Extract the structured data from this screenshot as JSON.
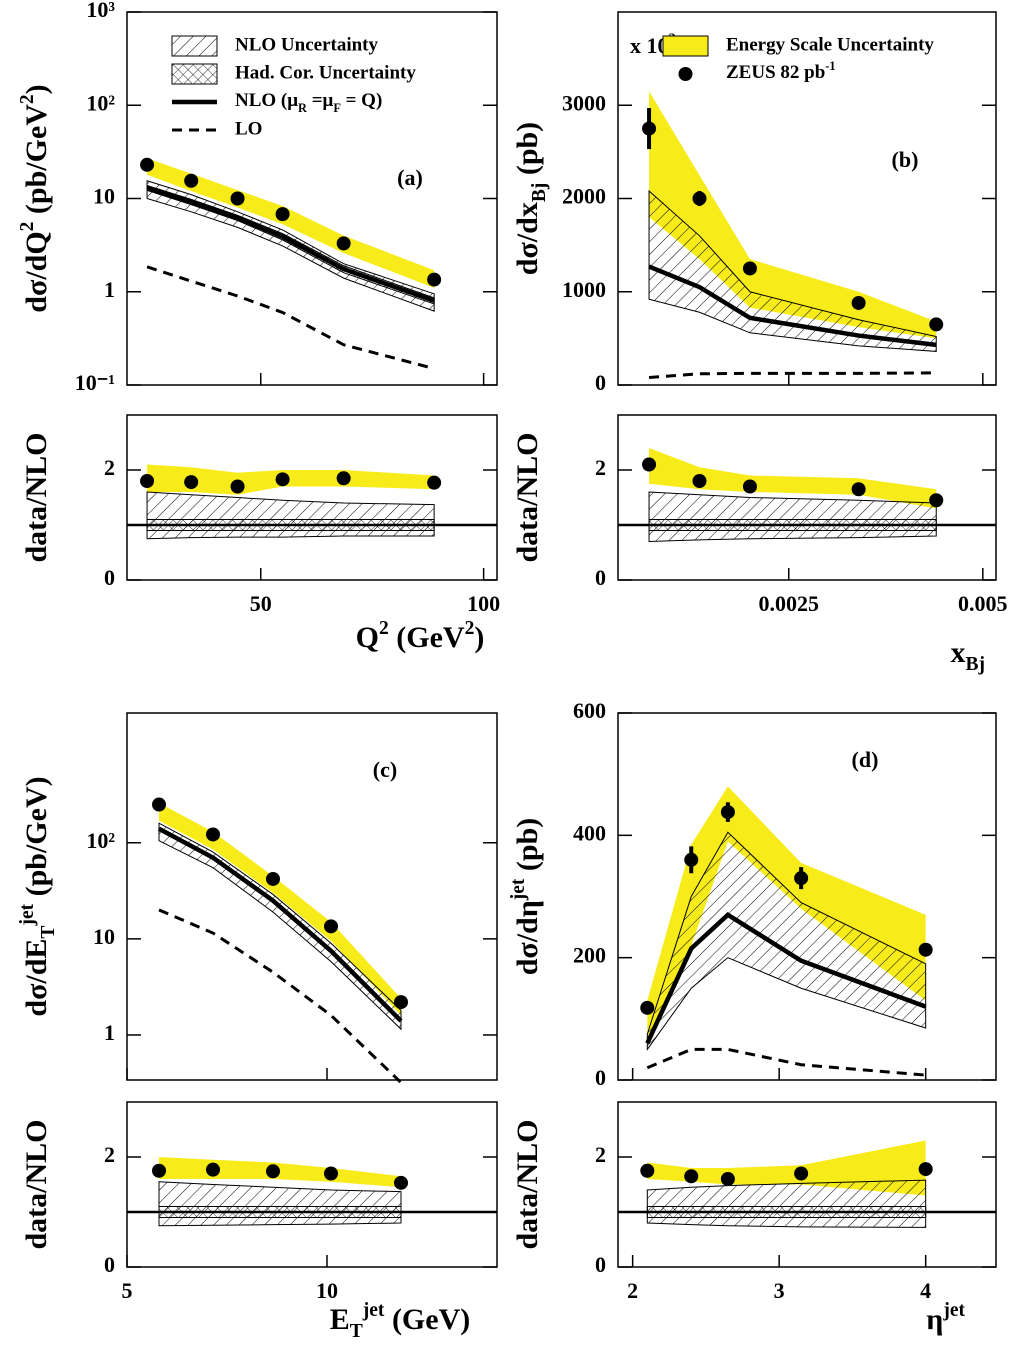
{
  "chart_data": [
    {
      "type": "line",
      "panel_label": "(a)",
      "log_y": true,
      "ylabel": [
        {
          "text": "dσ/dQ"
        },
        {
          "text": "2",
          "pos": "sup"
        },
        {
          "text": " (pb/GeV"
        },
        {
          "text": "2",
          "pos": "sup"
        },
        {
          "text": ")"
        }
      ],
      "xlim": [
        20,
        103
      ],
      "ylim": [
        0.1,
        1000
      ],
      "xticks": [
        50,
        100
      ],
      "xtick_labels": false,
      "yticks": [
        {
          "value": 0.1,
          "label": "10⁻¹"
        },
        1,
        10,
        {
          "value": 100,
          "label": "10²"
        },
        {
          "value": 1000,
          "label": "10³"
        }
      ],
      "x": [
        24.5,
        34.4,
        44.8,
        54.9,
        68.6,
        88.9
      ],
      "series": [
        {
          "kind": "band",
          "color": "#f7ec1a",
          "upper": [
            27,
            18.5,
            12.3,
            8.3,
            4.0,
            1.7
          ],
          "lower": [
            18,
            12,
            8,
            5.3,
            2.6,
            1.1
          ]
        },
        {
          "name": "NLO Uncertainty",
          "kind": "band",
          "pattern": "hatch",
          "color": "#000000",
          "upper": [
            15.5,
            11,
            7.2,
            4.6,
            2.0,
            0.95
          ],
          "lower": [
            10,
            7.2,
            4.9,
            3.1,
            1.4,
            0.62
          ]
        },
        {
          "name": "Had. Cor. Uncertainty",
          "kind": "band",
          "pattern": "crosshatch",
          "color": "#000000",
          "upper": [
            13.8,
            9.8,
            6.6,
            4.2,
            1.9,
            0.86
          ],
          "lower": [
            12.2,
            8.6,
            5.8,
            3.6,
            1.6,
            0.74
          ]
        },
        {
          "name": [
            {
              "text": "NLO  (μ"
            },
            {
              "text": "R",
              "pos": "sub"
            },
            {
              "text": " =μ"
            },
            {
              "text": "F",
              "pos": "sub"
            },
            {
              "text": " = Q)"
            }
          ],
          "kind": "line",
          "color": "#000000",
          "values": [
            13,
            9.2,
            6.2,
            3.9,
            1.75,
            0.8
          ]
        },
        {
          "name": "LO",
          "kind": "line",
          "dash": true,
          "color": "#000000",
          "values": [
            1.85,
            1.3,
            0.9,
            0.6,
            0.27,
            0.15
          ]
        },
        {
          "kind": "points",
          "color": "#000000",
          "values": [
            23,
            15.5,
            10,
            6.8,
            3.3,
            1.35
          ]
        }
      ]
    },
    {
      "type": "line",
      "ylabel": "data/NLO",
      "xlabel": [
        {
          "text": "Q"
        },
        {
          "text": "2",
          "pos": "sup"
        },
        {
          "text": " (GeV"
        },
        {
          "text": "2",
          "pos": "sup"
        },
        {
          "text": ")"
        }
      ],
      "xlim": [
        20,
        103
      ],
      "ylim": [
        0,
        3
      ],
      "xticks": [
        50,
        100
      ],
      "yticks": [
        0,
        2
      ],
      "hline": 1,
      "x": [
        24.5,
        34.4,
        44.8,
        54.9,
        68.6,
        88.9
      ],
      "series": [
        {
          "kind": "band",
          "color": "#f7ec1a",
          "upper": [
            2.1,
            2.05,
            1.95,
            2.0,
            2.0,
            1.9
          ],
          "lower": [
            1.6,
            1.6,
            1.55,
            1.7,
            1.7,
            1.65
          ]
        },
        {
          "kind": "band",
          "pattern": "hatch",
          "color": "#000000",
          "upper": [
            1.6,
            1.55,
            1.5,
            1.45,
            1.4,
            1.37
          ],
          "lower": [
            0.75,
            0.77,
            0.78,
            0.78,
            0.8,
            0.8
          ]
        },
        {
          "kind": "band",
          "pattern": "crosshatch",
          "color": "#000000",
          "upper": [
            1.1,
            1.1,
            1.1,
            1.1,
            1.1,
            1.1
          ],
          "lower": [
            0.9,
            0.9,
            0.9,
            0.9,
            0.9,
            0.9
          ]
        },
        {
          "kind": "points",
          "color": "#000000",
          "values": [
            1.8,
            1.78,
            1.7,
            1.83,
            1.85,
            1.77
          ]
        }
      ]
    },
    {
      "type": "line",
      "panel_label": "(b)",
      "ylabel": [
        {
          "text": "dσ/dx"
        },
        {
          "text": "Bj",
          "pos": "sub"
        },
        {
          "text": " (pb)"
        }
      ],
      "multiplier": [
        {
          "text": "x 10"
        },
        {
          "text": "2",
          "pos": "sup"
        }
      ],
      "xlim": [
        0.0003,
        0.00517
      ],
      "ylim": [
        0,
        4000
      ],
      "xticks": [
        0.0025,
        0.005
      ],
      "xtick_labels": false,
      "yticks": [
        0,
        1000,
        2000,
        3000
      ],
      "x": [
        0.0007,
        0.00135,
        0.002,
        0.0034,
        0.0044
      ],
      "series": [
        {
          "name": "Energy Scale Uncertainty",
          "kind": "band",
          "color": "#f7ec1a",
          "upper": [
            3150,
            2250,
            1350,
            1000,
            680
          ],
          "lower": [
            1800,
            1350,
            830,
            620,
            500
          ]
        },
        {
          "kind": "band",
          "pattern": "hatch",
          "color": "#000000",
          "upper": [
            2080,
            1600,
            1000,
            700,
            520
          ],
          "lower": [
            920,
            780,
            560,
            420,
            360
          ]
        },
        {
          "kind": "line",
          "color": "#000000",
          "values": [
            1270,
            1050,
            720,
            530,
            430
          ]
        },
        {
          "kind": "line",
          "dash": true,
          "color": "#000000",
          "values": [
            80,
            120,
            125,
            125,
            130
          ]
        },
        {
          "name": [
            {
              "text": "ZEUS 82 pb"
            },
            {
              "text": "-1",
              "pos": "sup"
            }
          ],
          "kind": "points",
          "color": "#000000",
          "values": [
            2750,
            2000,
            1250,
            880,
            650
          ],
          "errors": [
            220,
            80,
            30,
            30,
            20
          ]
        }
      ]
    },
    {
      "type": "line",
      "ylabel": "data/NLO",
      "xlabel": [
        {
          "text": "x"
        },
        {
          "text": "Bj",
          "pos": "sub"
        }
      ],
      "xlim": [
        0.0003,
        0.00517
      ],
      "ylim": [
        0,
        3
      ],
      "xticks": [
        0.0025,
        0.005
      ],
      "yticks": [
        0,
        2
      ],
      "hline": 1,
      "x": [
        0.0007,
        0.00135,
        0.002,
        0.0034,
        0.0044
      ],
      "series": [
        {
          "kind": "band",
          "color": "#f7ec1a",
          "upper": [
            2.4,
            2.05,
            1.9,
            1.85,
            1.65
          ],
          "lower": [
            1.75,
            1.65,
            1.6,
            1.55,
            1.3
          ]
        },
        {
          "kind": "band",
          "pattern": "hatch",
          "color": "#000000",
          "upper": [
            1.6,
            1.55,
            1.5,
            1.45,
            1.4
          ],
          "lower": [
            0.7,
            0.73,
            0.75,
            0.77,
            0.8
          ]
        },
        {
          "kind": "band",
          "pattern": "crosshatch",
          "color": "#000000",
          "upper": [
            1.1,
            1.1,
            1.1,
            1.1,
            1.1
          ],
          "lower": [
            0.9,
            0.9,
            0.9,
            0.9,
            0.9
          ]
        },
        {
          "kind": "points",
          "color": "#000000",
          "values": [
            2.1,
            1.8,
            1.7,
            1.65,
            1.45
          ],
          "errors": [
            0.12,
            0.05,
            0.03,
            0.03,
            0.03
          ]
        }
      ]
    },
    {
      "type": "line",
      "panel_label": "(c)",
      "log_y": true,
      "ylabel": [
        {
          "text": "dσ/dE"
        },
        {
          "text": "T",
          "pos": "sub"
        },
        {
          "text": "jet",
          "pos": "sup"
        },
        {
          "text": " (pb/GeV)"
        }
      ],
      "xlim": [
        5,
        14.25
      ],
      "ylim": [
        0.34,
        2240
      ],
      "xticks": [
        5,
        10
      ],
      "xtick_labels": false,
      "yticks": [
        1,
        10,
        {
          "value": 100,
          "label": "10²"
        }
      ],
      "x": [
        5.8,
        7.15,
        8.65,
        10.1,
        11.85
      ],
      "series": [
        {
          "kind": "band",
          "color": "#f7ec1a",
          "upper": [
            260,
            130,
            45,
            15,
            2.4
          ],
          "lower": [
            170,
            85,
            30,
            9.5,
            1.6
          ]
        },
        {
          "kind": "band",
          "pattern": "hatch",
          "color": "#000000",
          "upper": [
            160,
            80,
            29,
            9,
            1.8
          ],
          "lower": [
            105,
            55,
            19,
            5.8,
            1.15
          ]
        },
        {
          "kind": "line",
          "color": "#000000",
          "values": [
            140,
            70,
            25,
            7.5,
            1.4
          ]
        },
        {
          "kind": "line",
          "dash": true,
          "color": "#000000",
          "values": [
            20,
            11.5,
            4.5,
            1.6,
            0.32
          ]
        },
        {
          "kind": "points",
          "color": "#000000",
          "values": [
            250,
            122,
            42,
            13.5,
            2.2
          ]
        }
      ]
    },
    {
      "type": "line",
      "ylabel": "data/NLO",
      "xlabel": [
        {
          "text": "E"
        },
        {
          "text": "T",
          "pos": "sub"
        },
        {
          "text": "jet",
          "pos": "sup"
        },
        {
          "text": " (GeV)"
        }
      ],
      "xlim": [
        5,
        14.25
      ],
      "ylim": [
        0,
        3
      ],
      "xticks": [
        5,
        10
      ],
      "yticks": [
        0,
        2
      ],
      "hline": 1,
      "x": [
        5.8,
        7.15,
        8.65,
        10.1,
        11.85
      ],
      "series": [
        {
          "kind": "band",
          "color": "#f7ec1a",
          "upper": [
            2.0,
            1.95,
            1.9,
            1.8,
            1.65
          ],
          "lower": [
            1.6,
            1.6,
            1.6,
            1.55,
            1.45
          ]
        },
        {
          "kind": "band",
          "pattern": "hatch",
          "color": "#000000",
          "upper": [
            1.55,
            1.5,
            1.45,
            1.4,
            1.37
          ],
          "lower": [
            0.75,
            0.76,
            0.77,
            0.78,
            0.8
          ]
        },
        {
          "kind": "band",
          "pattern": "crosshatch",
          "color": "#000000",
          "upper": [
            1.1,
            1.1,
            1.1,
            1.1,
            1.1
          ],
          "lower": [
            0.9,
            0.9,
            0.9,
            0.9,
            0.9
          ]
        },
        {
          "kind": "points",
          "color": "#000000",
          "values": [
            1.75,
            1.77,
            1.74,
            1.7,
            1.53
          ],
          "errors": [
            0.03,
            0.03,
            0.03,
            0.08,
            0.1
          ]
        }
      ]
    },
    {
      "type": "line",
      "panel_label": "(d)",
      "ylabel": [
        {
          "text": "dσ/dη"
        },
        {
          "text": "jet",
          "pos": "sup"
        },
        {
          "text": " (pb)"
        }
      ],
      "xlim": [
        1.9,
        4.48
      ],
      "ylim": [
        0,
        600
      ],
      "xticks": [
        2,
        3,
        4
      ],
      "xtick_labels": false,
      "yticks": [
        0,
        200,
        400,
        600
      ],
      "x": [
        2.1,
        2.4,
        2.65,
        3.15,
        4.0
      ],
      "series": [
        {
          "kind": "band",
          "color": "#f7ec1a",
          "upper": [
            130,
            385,
            480,
            355,
            270
          ],
          "lower": [
            60,
            220,
            390,
            280,
            130
          ]
        },
        {
          "kind": "band",
          "pattern": "hatch",
          "color": "#000000",
          "upper": [
            75,
            300,
            405,
            290,
            190
          ],
          "lower": [
            50,
            150,
            200,
            150,
            85
          ]
        },
        {
          "kind": "line",
          "color": "#000000",
          "values": [
            60,
            215,
            270,
            195,
            120
          ]
        },
        {
          "kind": "line",
          "dash": true,
          "color": "#000000",
          "values": [
            20,
            50,
            50,
            25,
            8
          ]
        },
        {
          "kind": "points",
          "color": "#000000",
          "values": [
            118,
            360,
            438,
            330,
            213
          ],
          "errors": [
            5,
            22,
            16,
            18,
            6
          ]
        }
      ]
    },
    {
      "type": "line",
      "ylabel": "data/NLO",
      "xlabel": [
        {
          "text": "η"
        },
        {
          "text": "jet",
          "pos": "sup"
        }
      ],
      "xlim": [
        1.9,
        4.48
      ],
      "ylim": [
        0,
        3
      ],
      "xticks": [
        2,
        3,
        4
      ],
      "yticks": [
        0,
        2
      ],
      "hline": 1,
      "x": [
        2.1,
        2.4,
        2.65,
        3.15,
        4.0
      ],
      "series": [
        {
          "kind": "band",
          "color": "#f7ec1a",
          "upper": [
            1.9,
            1.8,
            1.8,
            1.85,
            2.3
          ],
          "lower": [
            1.6,
            1.55,
            1.5,
            1.5,
            1.3
          ]
        },
        {
          "kind": "band",
          "pattern": "hatch",
          "color": "#000000",
          "upper": [
            1.4,
            1.45,
            1.48,
            1.52,
            1.58
          ],
          "lower": [
            0.8,
            0.77,
            0.75,
            0.73,
            0.72
          ]
        },
        {
          "kind": "band",
          "pattern": "crosshatch",
          "color": "#000000",
          "upper": [
            1.1,
            1.1,
            1.1,
            1.1,
            1.1
          ],
          "lower": [
            0.9,
            0.9,
            0.9,
            0.9,
            0.9
          ]
        },
        {
          "kind": "points",
          "color": "#000000",
          "values": [
            1.75,
            1.65,
            1.6,
            1.7,
            1.78
          ]
        }
      ]
    }
  ]
}
